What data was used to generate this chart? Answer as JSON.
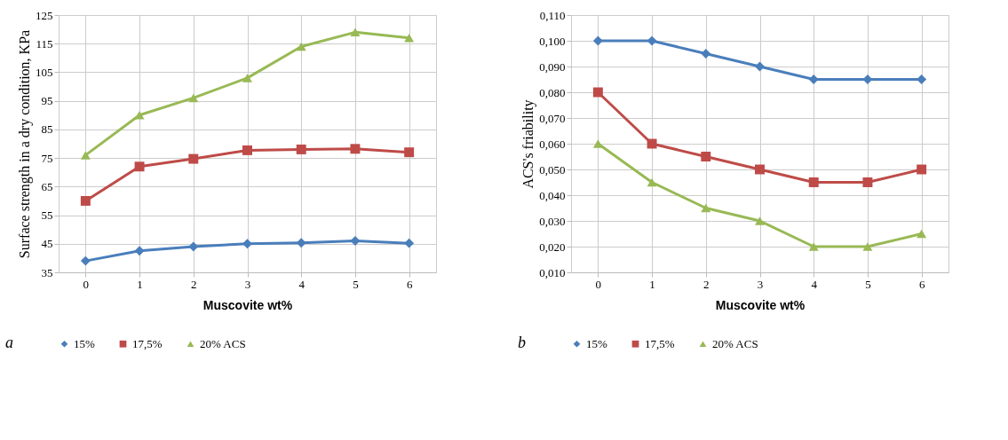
{
  "chart_data": [
    {
      "type": "line",
      "xlabel": "Muscovite wt%",
      "ylabel": "Surface strength in a dry condition, KPa",
      "categories": [
        "0",
        "1",
        "2",
        "3",
        "4",
        "5",
        "6"
      ],
      "ylim": [
        35,
        125
      ],
      "yticks": [
        35,
        45,
        55,
        65,
        75,
        85,
        95,
        105,
        115,
        125
      ],
      "grid": true,
      "legend": "bottom",
      "annotations": [
        "a"
      ],
      "series": [
        {
          "name": "15%",
          "color": "#4a7ebb",
          "marker": "diamond",
          "values": [
            39,
            42.5,
            44,
            45,
            45.3,
            46,
            45.2
          ]
        },
        {
          "name": "17,5%",
          "color": "#be4b48",
          "marker": "square",
          "values": [
            60,
            72,
            74.7,
            77.7,
            78,
            78.2,
            77
          ]
        },
        {
          "name": "20% ACS",
          "color": "#98b954",
          "marker": "triangle",
          "values": [
            76,
            90,
            96,
            103,
            114,
            119,
            117
          ]
        }
      ]
    },
    {
      "type": "line",
      "xlabel": "Muscovite wt%",
      "ylabel": "ACS's friability",
      "categories": [
        "0",
        "1",
        "2",
        "3",
        "4",
        "5",
        "6"
      ],
      "ylim": [
        0.01,
        0.11
      ],
      "yticks": [
        {
          "value": 0.01,
          "label": "0,010"
        },
        {
          "value": 0.02,
          "label": "0,020"
        },
        {
          "value": 0.03,
          "label": "0,030"
        },
        {
          "value": 0.04,
          "label": "0,040"
        },
        {
          "value": 0.05,
          "label": "0,050"
        },
        {
          "value": 0.06,
          "label": "0,060"
        },
        {
          "value": 0.07,
          "label": "0,070"
        },
        {
          "value": 0.08,
          "label": "0,080"
        },
        {
          "value": 0.09,
          "label": "0,090"
        },
        {
          "value": 0.1,
          "label": "0,100"
        },
        {
          "value": 0.11,
          "label": "0,110"
        }
      ],
      "grid": true,
      "legend": "bottom",
      "annotations": [
        "b"
      ],
      "series": [
        {
          "name": "15%",
          "color": "#4a7ebb",
          "marker": "diamond",
          "values": [
            0.1,
            0.1,
            0.095,
            0.09,
            0.085,
            0.085,
            0.085
          ]
        },
        {
          "name": "17,5%",
          "color": "#be4b48",
          "marker": "square",
          "values": [
            0.08,
            0.06,
            0.055,
            0.05,
            0.045,
            0.045,
            0.05
          ]
        },
        {
          "name": "20% ACS",
          "color": "#98b954",
          "marker": "triangle",
          "values": [
            0.06,
            0.045,
            0.035,
            0.03,
            0.02,
            0.02,
            0.025
          ]
        }
      ]
    }
  ]
}
